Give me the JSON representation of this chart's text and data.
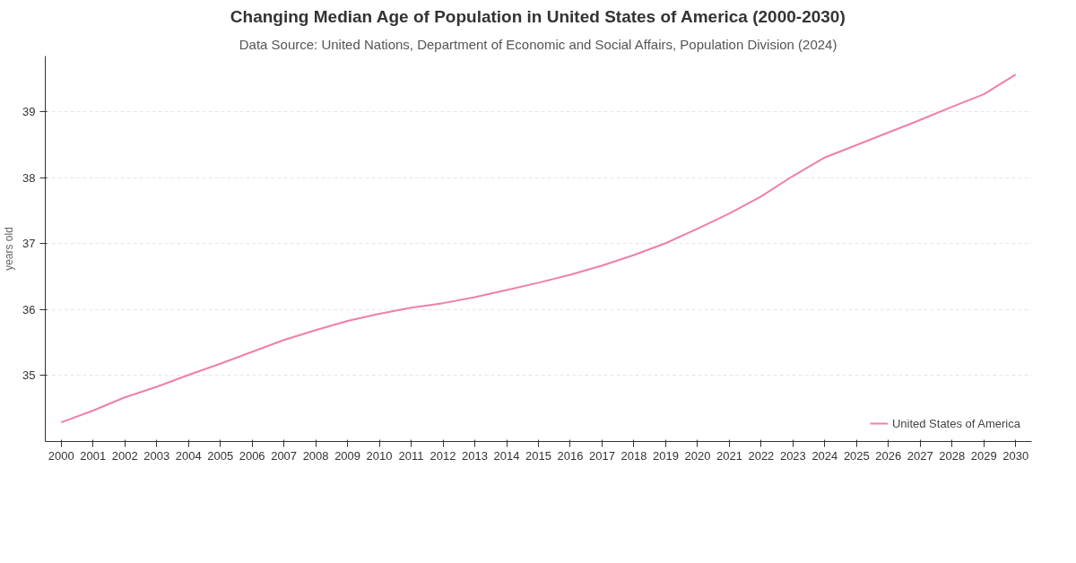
{
  "chart_data": {
    "type": "line",
    "title": "Changing Median Age of Population in United States of America (2000-2030)",
    "subtitle": "Data Source: United Nations, Department of Economic and Social Affairs, Population Division (2024)",
    "ylabel": "years old",
    "x": [
      2000,
      2001,
      2002,
      2003,
      2004,
      2005,
      2006,
      2007,
      2008,
      2009,
      2010,
      2011,
      2012,
      2013,
      2014,
      2015,
      2016,
      2017,
      2018,
      2019,
      2020,
      2021,
      2022,
      2023,
      2024,
      2025,
      2026,
      2027,
      2028,
      2029,
      2030
    ],
    "series": [
      {
        "name": "United States of America",
        "color": "#f07fa8",
        "values": [
          34.29,
          34.47,
          34.67,
          34.83,
          35.01,
          35.18,
          35.36,
          35.54,
          35.69,
          35.83,
          35.94,
          36.03,
          36.1,
          36.19,
          36.3,
          36.41,
          36.53,
          36.67,
          36.83,
          37.01,
          37.23,
          37.46,
          37.72,
          38.03,
          38.31,
          38.5,
          38.69,
          38.88,
          39.08,
          39.27,
          39.57
        ]
      }
    ],
    "xlim": [
      1999.5,
      2030.5
    ],
    "xticks": [
      2000,
      2001,
      2002,
      2003,
      2004,
      2005,
      2006,
      2007,
      2008,
      2009,
      2010,
      2011,
      2012,
      2013,
      2014,
      2015,
      2016,
      2017,
      2018,
      2019,
      2020,
      2021,
      2022,
      2023,
      2024,
      2025,
      2026,
      2027,
      2028,
      2029,
      2030
    ],
    "ylim": [
      34.0,
      39.85
    ],
    "yticks": [
      35,
      36,
      37,
      38,
      39
    ],
    "grid": "y",
    "legend": "bottom right",
    "marker": "none",
    "line_style": "solid"
  }
}
